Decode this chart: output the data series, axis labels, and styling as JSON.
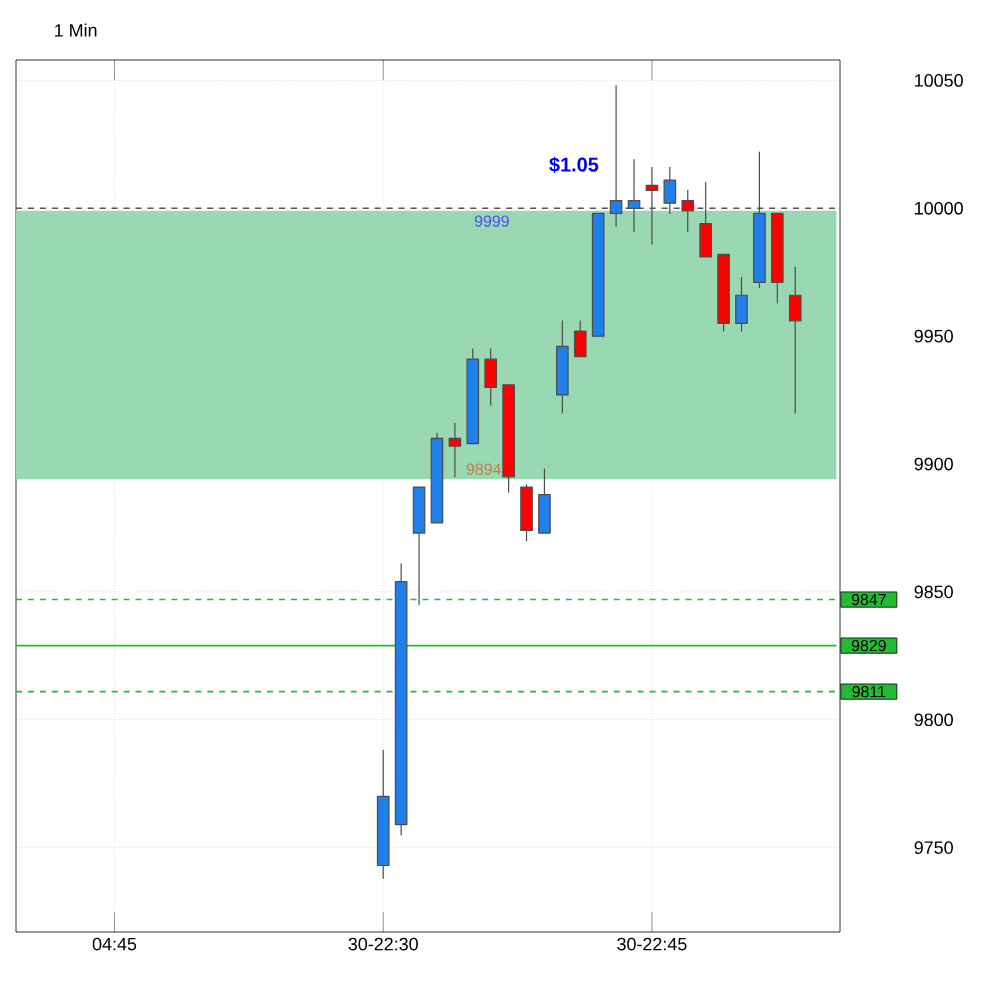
{
  "chart_data": {
    "type": "candlestick",
    "title": "1 Min",
    "categories": [
      null,
      null,
      null,
      null,
      null,
      "04:45",
      null,
      null,
      null,
      null,
      null,
      null,
      null,
      null,
      null,
      null,
      null,
      null,
      null,
      null,
      "30-22:30",
      null,
      null,
      null,
      null,
      null,
      null,
      null,
      null,
      null,
      null,
      null,
      null,
      null,
      null,
      "30-22:45",
      null,
      null,
      null,
      null,
      null,
      null,
      null,
      null,
      null,
      null
    ],
    "ohlc": [
      null,
      null,
      null,
      null,
      null,
      null,
      null,
      null,
      null,
      null,
      null,
      null,
      null,
      null,
      null,
      null,
      null,
      null,
      null,
      null,
      [
        9743,
        9788,
        9738,
        9770
      ],
      [
        9759,
        9861,
        9755,
        9854
      ],
      [
        9873,
        9891,
        9845,
        9891
      ],
      [
        9877,
        9912,
        9877,
        9910
      ],
      [
        9910,
        9916,
        9895,
        9907
      ],
      [
        9908,
        9945,
        9908,
        9941
      ],
      [
        9941,
        9945,
        9923,
        9930
      ],
      [
        9931,
        9931,
        9889,
        9895
      ],
      [
        9891,
        9892,
        9870,
        9874
      ],
      [
        9873,
        9898,
        9873,
        9888
      ],
      [
        9927,
        9956,
        9920,
        9946
      ],
      [
        9952,
        9956,
        9942,
        9942
      ],
      [
        9950,
        9998,
        9950,
        9998
      ],
      [
        9998,
        10048,
        9993,
        10003
      ],
      [
        10000,
        10019,
        9991,
        10003
      ],
      [
        10009,
        10016,
        9986,
        10007
      ],
      [
        10002,
        10016,
        9998,
        10011
      ],
      [
        10003,
        10007,
        9991,
        9999
      ],
      [
        9994,
        10010,
        9981,
        9981
      ],
      [
        9982,
        9982,
        9952,
        9955
      ],
      [
        9955,
        9973,
        9952,
        9966
      ],
      [
        9971,
        10022,
        9969,
        9998
      ],
      [
        9998,
        9998,
        9963,
        9971
      ],
      [
        9966,
        9977,
        9920,
        9956
      ],
      null,
      null
    ],
    "ylim": [
      9717,
      10058
    ],
    "yticks": [
      9750,
      9800,
      9850,
      9900,
      9950,
      10000,
      10050
    ],
    "grid": true,
    "ref_lines": [
      {
        "axis": "y",
        "value": 10000,
        "color": "#555555",
        "line_style": "dashed"
      },
      {
        "axis": "y",
        "value": 9847,
        "label": "9847",
        "color": "#22bb33",
        "line_style": "dashed"
      },
      {
        "axis": "y",
        "value": 9829,
        "label": "9829",
        "color": "#22bb33",
        "line_style": "solid"
      },
      {
        "axis": "y",
        "value": 9811,
        "label": "9811",
        "color": "#22bb33",
        "line_style": "dashed"
      }
    ],
    "bands": [
      {
        "axis": "y",
        "from": 9894,
        "to": 9999,
        "color": "#9ad8b4"
      }
    ],
    "annotations": [
      {
        "text": "$1.05",
        "y": 9999
      },
      {
        "text": "9999",
        "y": 9999
      },
      {
        "text": "9894",
        "y": 9894
      }
    ]
  }
}
